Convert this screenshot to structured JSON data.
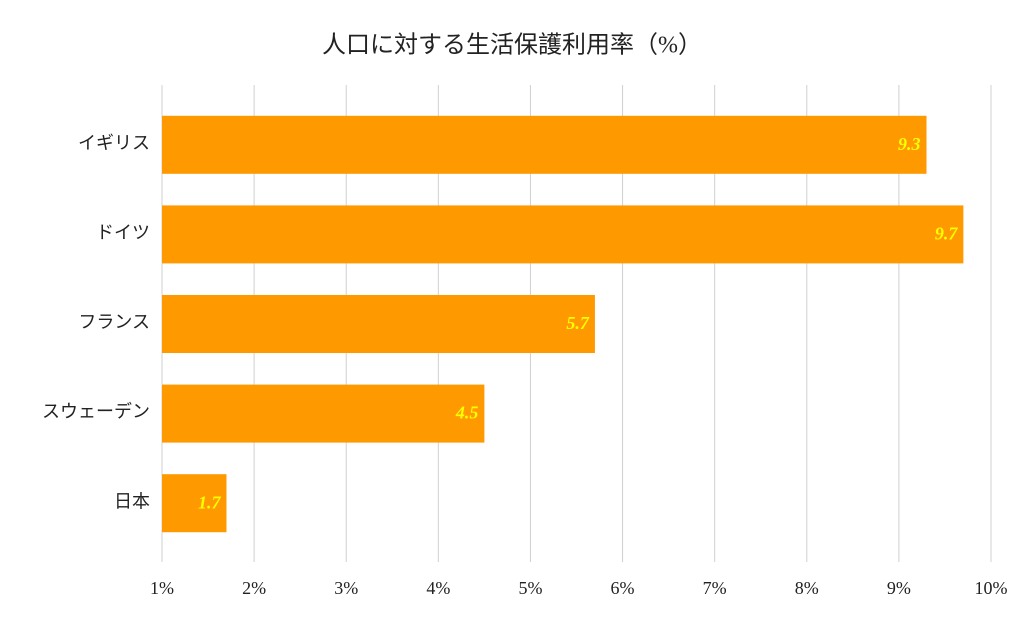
{
  "chart_data": {
    "type": "barh",
    "title": "人口に対する生活保護利用率（%）",
    "categories": [
      "イギリス",
      "ドイツ",
      "フランス",
      "スウェーデン",
      "日本"
    ],
    "values": [
      9.3,
      9.7,
      5.7,
      4.5,
      1.7
    ],
    "color": "#ff9900",
    "label_color": "#ffff00",
    "xlim": [
      1,
      10
    ],
    "xticks": [
      {
        "value": 1,
        "label": "1%"
      },
      {
        "value": 2,
        "label": "2%"
      },
      {
        "value": 3,
        "label": "3%"
      },
      {
        "value": 4,
        "label": "4%"
      },
      {
        "value": 5,
        "label": "5%"
      },
      {
        "value": 6,
        "label": "6%"
      },
      {
        "value": 7,
        "label": "7%"
      },
      {
        "value": 8,
        "label": "8%"
      },
      {
        "value": 9,
        "label": "9%"
      },
      {
        "value": 10,
        "label": "10%"
      }
    ],
    "grid": true
  }
}
